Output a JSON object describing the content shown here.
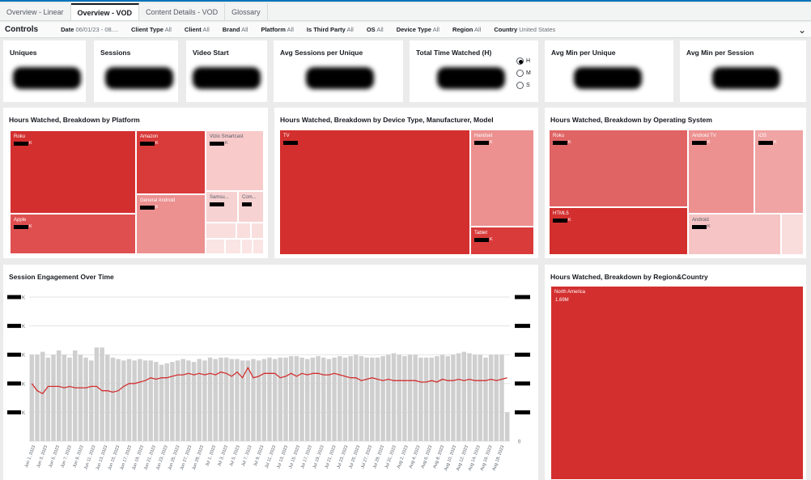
{
  "tabs": [
    {
      "label": "Overview - Linear",
      "active": false
    },
    {
      "label": "Overview - VOD",
      "active": true
    },
    {
      "label": "Content Details - VOD",
      "active": false
    },
    {
      "label": "Glossary",
      "active": false
    }
  ],
  "controls": {
    "label": "Controls",
    "filters": [
      {
        "name": "Date",
        "value": "06/01/23 - 08...."
      },
      {
        "name": "Client Type",
        "value": "All"
      },
      {
        "name": "Client",
        "value": "All"
      },
      {
        "name": "Brand",
        "value": "All"
      },
      {
        "name": "Platform",
        "value": "All"
      },
      {
        "name": "Is Third Party",
        "value": "All"
      },
      {
        "name": "OS",
        "value": "All"
      },
      {
        "name": "Device Type",
        "value": "All"
      },
      {
        "name": "Region",
        "value": "All"
      },
      {
        "name": "Country",
        "value": "United States"
      }
    ]
  },
  "kpis": [
    {
      "title": "Uniques"
    },
    {
      "title": "Sessions"
    },
    {
      "title": "Video Start"
    },
    {
      "title": "Avg Sessions per Unique"
    },
    {
      "title": "Total Time Watched (H)",
      "options": [
        "H",
        "M",
        "S"
      ],
      "selected": "H"
    },
    {
      "title": "Avg Min per Unique"
    },
    {
      "title": "Avg Min per Session"
    }
  ],
  "platform": {
    "title": "Hours Watched, Breakdown by Platform",
    "cells": [
      {
        "name": "Roku",
        "suffix": "K",
        "color": "#d32f2f"
      },
      {
        "name": "Apple",
        "suffix": "K",
        "color": "#e04f4f"
      },
      {
        "name": "Amazon",
        "suffix": "K",
        "color": "#d93a3a"
      },
      {
        "name": "General Android",
        "suffix": "K",
        "color": "#ec9090"
      },
      {
        "name": "Vizio Smartcast",
        "suffix": "K",
        "color": "#f8caca"
      },
      {
        "name": "Samsu...",
        "suffix": "",
        "color": "#f7d2d2"
      },
      {
        "name": "Com...",
        "suffix": "",
        "color": "#f7d2d2"
      }
    ]
  },
  "device": {
    "title": "Hours Watched, Breakdown by Device Type, Manufacturer, Model",
    "cells": [
      {
        "name": "TV",
        "suffix": "",
        "color": "#d32f2f"
      },
      {
        "name": "Handset",
        "suffix": "K",
        "color": "#ec9090"
      },
      {
        "name": "Tablet",
        "suffix": "K",
        "color": "#d93a3a"
      }
    ]
  },
  "os": {
    "title": "Hours Watched, Breakdown by Operating System",
    "cells": [
      {
        "name": "Roku",
        "suffix": "K",
        "color": "#e06464"
      },
      {
        "name": "HTML5",
        "suffix": "K",
        "color": "#d32f2f"
      },
      {
        "name": "Android TV",
        "suffix": "K",
        "color": "#ec9090"
      },
      {
        "name": "iOS",
        "suffix": "K",
        "color": "#f0a4a4"
      },
      {
        "name": "Android",
        "suffix": "K",
        "color": "#f6c4c4"
      }
    ]
  },
  "region": {
    "title": "Hours Watched, Breakdown by Region&Country",
    "cells": [
      {
        "name": "North America",
        "value": "1.69M",
        "color": "#d32f2f"
      }
    ]
  },
  "engagement": {
    "title": "Session Engagement Over Time"
  },
  "chart_data": {
    "type": "bar",
    "title": "Session Engagement Over Time",
    "ylabel": "",
    "xlabel": "",
    "ylim": [
      0,
      100
    ],
    "right_axis": {
      "ticks": [
        "0"
      ]
    },
    "left_axis_suffix": "K",
    "tick_labels": [
      "Jun 1, 2023",
      "Jun 3, 2023",
      "Jun 5, 2023",
      "Jun 7, 2023",
      "Jun 9, 2023",
      "Jun 11, 2023",
      "Jun 13, 2023",
      "Jun 15, 2023",
      "Jun 17, 2023",
      "Jun 19, 2023",
      "Jun 21, 2023",
      "Jun 23, 2023",
      "Jun 25, 2023",
      "Jun 27, 2023",
      "Jun 29, 2023",
      "Jul 1, 2023",
      "Jul 3, 2023",
      "Jul 5, 2023",
      "Jul 7, 2023",
      "Jul 9, 2023",
      "Jul 11, 2023",
      "Jul 13, 2023",
      "Jul 15, 2023",
      "Jul 17, 2023",
      "Jul 19, 2023",
      "Jul 21, 2023",
      "Jul 23, 2023",
      "Jul 25, 2023",
      "Jul 27, 2023",
      "Jul 29, 2023",
      "Jul 31, 2023",
      "Aug 2, 2023",
      "Aug 4, 2023",
      "Aug 6, 2023",
      "Aug 8, 2023",
      "Aug 10, 2023",
      "Aug 12, 2023",
      "Aug 14, 2023",
      "Aug 16, 2023",
      "Aug 18, 2023"
    ],
    "series": [
      {
        "values": [
          60,
          60,
          62,
          58,
          60,
          63,
          60,
          58,
          63,
          60,
          58,
          56,
          65,
          65,
          60,
          58,
          57,
          56,
          57,
          56,
          57,
          56,
          56,
          55,
          53,
          54,
          55,
          56,
          57,
          56,
          55,
          57,
          56,
          58,
          57,
          58,
          58,
          57,
          57,
          56,
          56,
          57,
          56,
          57,
          58,
          57,
          58,
          58,
          59,
          59,
          58,
          57,
          58,
          59,
          58,
          57,
          58,
          59,
          58,
          59,
          60,
          59,
          58,
          58,
          58,
          59,
          60,
          61,
          60,
          59,
          60,
          60,
          58,
          58,
          58,
          59,
          60,
          59,
          60,
          61,
          62,
          61,
          60,
          60,
          58,
          60,
          60,
          60,
          20
        ]
      },
      {
        "values": [
          40,
          35,
          33,
          38,
          38,
          38,
          37,
          38,
          37,
          37,
          37,
          38,
          38,
          35,
          35,
          34,
          35,
          38,
          40,
          40,
          41,
          42,
          44,
          43,
          44,
          44,
          45,
          46,
          46,
          47,
          46,
          47,
          46,
          47,
          46,
          48,
          47,
          45,
          48,
          44,
          51,
          44,
          45,
          47,
          47,
          47,
          44,
          45,
          47,
          45,
          47,
          46,
          47,
          47,
          46,
          46,
          47,
          46,
          45,
          44,
          44,
          42,
          43,
          44,
          43,
          42,
          43,
          42,
          42,
          42,
          42,
          42,
          41,
          41,
          42,
          41,
          43,
          42,
          42,
          43,
          42,
          43,
          42,
          42,
          42,
          43,
          42,
          43,
          44
        ]
      }
    ]
  }
}
